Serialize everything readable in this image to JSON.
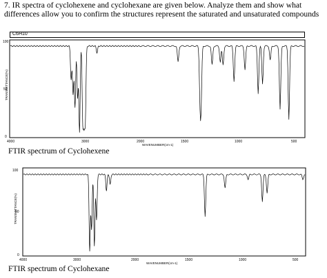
{
  "question": {
    "text": "7.  IR spectra of cyclohexene and cyclohexane are given below. Analyze them and show what differences allow you to confirm the structures represent the saturated and unsaturated compounds"
  },
  "spectrum1": {
    "formula": "C6H10",
    "y_axis_label": "TRANSMITTANCE(%)",
    "x_axis_label": "WAVENUMBER(cm-1)",
    "y_ticks": [
      "100",
      "50",
      "0"
    ],
    "x_ticks": [
      "4000",
      "3000",
      "2000",
      "1500",
      "1000",
      "500"
    ],
    "caption": "FTIR spectrum of Cyclohexene"
  },
  "spectrum2": {
    "y_axis_label": "TRANSMITTANCE(%)",
    "x_axis_label": "WAVENUMBER(cm-1)",
    "y_ticks": [
      "100",
      "50",
      "0"
    ],
    "x_ticks": [
      "4000",
      "3000",
      "2000",
      "1500",
      "1000",
      "500"
    ],
    "caption": "FTIR spectrum of Cyclohexane"
  },
  "chart_data": [
    {
      "type": "line",
      "xlabel": "WAVENUMBER(cm-1)",
      "ylabel": "TRANSMITTANCE(%)",
      "xlim": [
        4000,
        500
      ],
      "ylim": [
        0,
        100
      ],
      "grid": false,
      "baseline": 95,
      "bands": [
        {
          "x": 3060,
          "y": 60
        },
        {
          "x": 3030,
          "y": 45
        },
        {
          "x": 3000,
          "y": 30
        },
        {
          "x": 2960,
          "y": 40
        },
        {
          "x": 2930,
          "y": 5
        },
        {
          "x": 2880,
          "y": 20
        },
        {
          "x": 2860,
          "y": 25
        },
        {
          "x": 2840,
          "y": 22
        },
        {
          "x": 2660,
          "y": 88
        },
        {
          "x": 1650,
          "y": 78
        },
        {
          "x": 1450,
          "y": 45
        },
        {
          "x": 1440,
          "y": 38
        },
        {
          "x": 1340,
          "y": 75
        },
        {
          "x": 1265,
          "y": 78
        },
        {
          "x": 1240,
          "y": 75
        },
        {
          "x": 1140,
          "y": 58
        },
        {
          "x": 1040,
          "y": 70
        },
        {
          "x": 920,
          "y": 45
        },
        {
          "x": 880,
          "y": 55
        },
        {
          "x": 810,
          "y": 80
        },
        {
          "x": 720,
          "y": 28
        },
        {
          "x": 640,
          "y": 18
        }
      ]
    },
    {
      "type": "line",
      "xlabel": "WAVENUMBER(cm-1)",
      "ylabel": "TRANSMITTANCE(%)",
      "xlim": [
        4000,
        500
      ],
      "ylim": [
        0,
        100
      ],
      "grid": false,
      "baseline": 94,
      "bands": [
        {
          "x": 2930,
          "y": 5
        },
        {
          "x": 2900,
          "y": 30
        },
        {
          "x": 2855,
          "y": 10
        },
        {
          "x": 2820,
          "y": 40
        },
        {
          "x": 2660,
          "y": 75
        },
        {
          "x": 2600,
          "y": 82
        },
        {
          "x": 1450,
          "y": 45
        },
        {
          "x": 1260,
          "y": 78
        },
        {
          "x": 1040,
          "y": 88
        },
        {
          "x": 905,
          "y": 62
        },
        {
          "x": 860,
          "y": 72
        },
        {
          "x": 520,
          "y": 88
        }
      ]
    }
  ]
}
